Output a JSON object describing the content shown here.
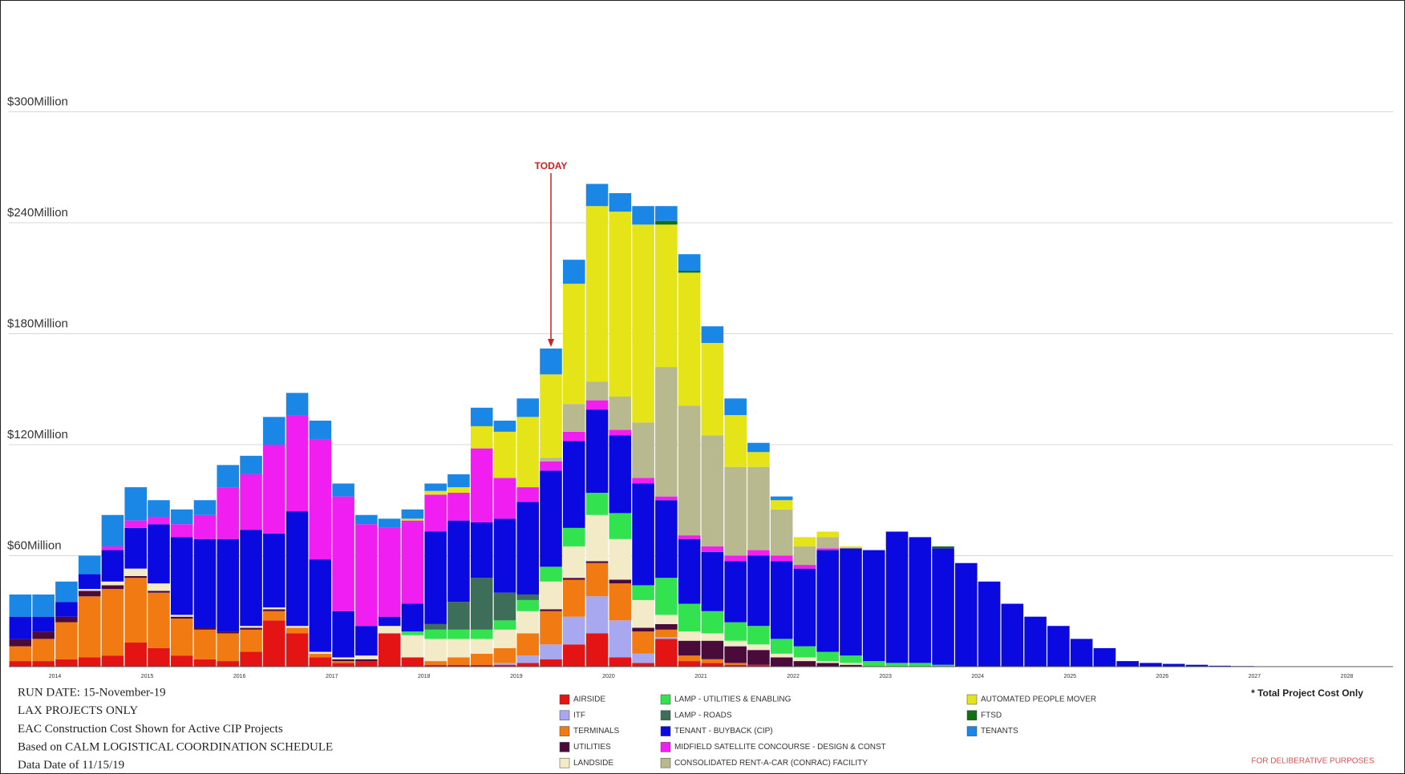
{
  "chart_data": {
    "type": "stacked_bar",
    "categories": [
      null,
      "2014",
      null,
      null,
      null,
      "2015",
      null,
      null,
      null,
      "2016",
      null,
      null,
      null,
      "2017",
      null,
      null,
      null,
      "2018",
      null,
      null,
      null,
      "2019",
      null,
      null,
      null,
      "2020",
      null,
      null,
      null,
      "2021",
      null,
      null,
      null,
      "2022",
      null,
      null,
      null,
      "2023",
      null,
      null,
      null,
      "2024",
      null,
      null,
      null,
      "2025",
      null,
      null,
      null,
      "2026",
      null,
      null,
      null,
      "2027",
      null,
      null,
      null,
      "2028",
      null,
      null
    ],
    "ylim": [
      0,
      360
    ],
    "yticks": [
      {
        "value": 60,
        "label": "$60Million"
      },
      {
        "value": 120,
        "label": "$120Million"
      },
      {
        "value": 180,
        "label": "$180Million"
      },
      {
        "value": 240,
        "label": "$240Million"
      },
      {
        "value": 300,
        "label": "$300Million"
      }
    ],
    "grid": true,
    "annotation": "TODAY",
    "notes": [
      "RUN DATE: 15-November-19",
      "LAX PROJECTS ONLY",
      "EAC Construction Cost Shown for Active CIP Projects",
      "Based on CALM LOGISTICAL COORDINATION SCHEDULE",
      "Data Date of 11/15/19"
    ],
    "footnote": "* Total Project Cost Only",
    "disclaimer": "FOR DELIBERATIVE PURPOSES",
    "series": [
      {
        "name": "AIRSIDE",
        "color": "#e41414",
        "values": [
          3,
          3,
          4,
          5,
          6,
          13,
          10,
          6,
          4,
          3,
          8,
          25,
          18,
          5,
          2,
          3,
          18,
          5,
          1,
          1,
          1,
          1,
          2,
          4,
          12,
          18,
          5,
          2,
          15,
          3,
          2,
          1,
          1,
          0,
          0,
          0,
          0,
          0,
          0,
          0,
          0,
          0,
          0,
          0,
          0,
          0,
          0,
          0,
          0,
          0,
          0,
          0,
          0,
          0,
          0,
          0,
          0,
          0,
          0,
          0
        ]
      },
      {
        "name": "ITF",
        "color": "#a8a8f0",
        "values": [
          0,
          0,
          0,
          0,
          0,
          0,
          0,
          0,
          0,
          0,
          0,
          0,
          0,
          0,
          0,
          0,
          0,
          0,
          0,
          0,
          0,
          1,
          4,
          8,
          15,
          20,
          20,
          5,
          1,
          0,
          0,
          0,
          0,
          0,
          0,
          0,
          0,
          0,
          0,
          0,
          0,
          0,
          0,
          0,
          0,
          0,
          0,
          0,
          0,
          0,
          0,
          0,
          0,
          0,
          0,
          0,
          0,
          0,
          0,
          0
        ]
      },
      {
        "name": "TERMINALS",
        "color": "#f27a12",
        "values": [
          8,
          12,
          20,
          33,
          36,
          35,
          30,
          20,
          16,
          15,
          12,
          5,
          3,
          2,
          1,
          0,
          0,
          0,
          2,
          4,
          6,
          8,
          12,
          18,
          20,
          18,
          20,
          12,
          4,
          3,
          2,
          1,
          0,
          0,
          0,
          0,
          0,
          0,
          0,
          0,
          0,
          0,
          0,
          0,
          0,
          0,
          0,
          0,
          0,
          0,
          0,
          0,
          0,
          0,
          0,
          0,
          0,
          0,
          0,
          0
        ]
      },
      {
        "name": "UTILITIES",
        "color": "#4a0a3a",
        "values": [
          4,
          4,
          3,
          3,
          2,
          1,
          1,
          1,
          1,
          1,
          1,
          1,
          0,
          0,
          1,
          1,
          0,
          0,
          0,
          0,
          0,
          0,
          0,
          1,
          1,
          1,
          2,
          2,
          3,
          8,
          10,
          9,
          8,
          5,
          3,
          2,
          1,
          0,
          0,
          0,
          0,
          0,
          0,
          0,
          0,
          0,
          0,
          0,
          0,
          0,
          0,
          0,
          0,
          0,
          0,
          0,
          0,
          0,
          0,
          0
        ]
      },
      {
        "name": "LANDSIDE",
        "color": "#f3ebc8",
        "values": [
          0,
          0,
          0,
          1,
          2,
          4,
          4,
          1,
          0,
          0,
          1,
          1,
          1,
          1,
          1,
          2,
          4,
          12,
          12,
          10,
          8,
          10,
          12,
          15,
          17,
          25,
          22,
          15,
          5,
          5,
          4,
          3,
          3,
          2,
          2,
          1,
          1,
          0,
          0,
          0,
          0,
          0,
          0,
          0,
          0,
          0,
          0,
          0,
          0,
          0,
          0,
          0,
          0,
          0,
          0,
          0,
          0,
          0,
          0,
          0
        ]
      },
      {
        "name": "LAMP - UTILITIES & ENABLING",
        "color": "#33e24f",
        "values": [
          0,
          0,
          0,
          0,
          0,
          0,
          0,
          0,
          0,
          0,
          0,
          0,
          0,
          0,
          0,
          0,
          0,
          2,
          5,
          5,
          5,
          5,
          6,
          8,
          10,
          12,
          14,
          8,
          20,
          15,
          12,
          10,
          10,
          8,
          6,
          5,
          4,
          3,
          2,
          2,
          1,
          0,
          0,
          0,
          0,
          0,
          0,
          0,
          0,
          0,
          0,
          0,
          0,
          0,
          0,
          0,
          0,
          0,
          0,
          0
        ]
      },
      {
        "name": "LAMP - ROADS",
        "color": "#3c6e5a",
        "values": [
          0,
          0,
          0,
          0,
          0,
          0,
          0,
          0,
          0,
          0,
          0,
          0,
          0,
          0,
          0,
          0,
          0,
          0,
          3,
          15,
          28,
          15,
          3,
          0,
          0,
          0,
          0,
          0,
          0,
          0,
          0,
          0,
          0,
          0,
          0,
          0,
          0,
          0,
          0,
          0,
          0,
          0,
          0,
          0,
          0,
          0,
          0,
          0,
          0,
          0,
          0,
          0,
          0,
          0,
          0,
          0,
          0,
          0,
          0,
          0
        ]
      },
      {
        "name": "TENANT - BUYBACK (CIP)",
        "color": "#0a0ae0",
        "values": [
          12,
          8,
          8,
          8,
          17,
          22,
          32,
          42,
          48,
          50,
          52,
          40,
          62,
          50,
          25,
          16,
          5,
          15,
          50,
          44,
          30,
          40,
          50,
          52,
          47,
          45,
          42,
          55,
          42,
          35,
          32,
          33,
          38,
          42,
          42,
          55,
          58,
          60,
          71,
          68,
          63,
          56,
          46,
          34,
          27,
          22,
          15,
          10,
          3,
          2,
          1.5,
          1,
          0.5,
          0.3,
          0,
          0,
          0,
          0,
          0,
          0
        ]
      },
      {
        "name": "MIDFIELD SATELLITE CONCOURSE - DESIGN & CONST",
        "color": "#f01ef0",
        "values": [
          0,
          0,
          0,
          0,
          2,
          4,
          4,
          7,
          13,
          28,
          30,
          48,
          52,
          65,
          62,
          55,
          48,
          45,
          20,
          15,
          40,
          22,
          8,
          5,
          5,
          5,
          3,
          3,
          2,
          2,
          3,
          3,
          3,
          3,
          2,
          1,
          0,
          0,
          0,
          0,
          0,
          0,
          0,
          0,
          0,
          0,
          0,
          0,
          0,
          0,
          0,
          0,
          0,
          0,
          0,
          0,
          0,
          0,
          0,
          0
        ]
      },
      {
        "name": "CONSOLIDATED RENT-A-CAR (CONRAC) FACILITY",
        "color": "#b9b98f",
        "values": [
          0,
          0,
          0,
          0,
          0,
          0,
          0,
          0,
          0,
          0,
          0,
          0,
          0,
          0,
          0,
          0,
          0,
          0,
          0,
          0,
          0,
          0,
          0,
          2,
          15,
          10,
          18,
          30,
          70,
          70,
          60,
          48,
          45,
          25,
          10,
          6,
          0,
          0,
          0,
          0,
          0,
          0,
          0,
          0,
          0,
          0,
          0,
          0,
          0,
          0,
          0,
          0,
          0,
          0,
          0,
          0,
          0,
          0,
          0,
          0
        ]
      },
      {
        "name": "AUTOMATED PEOPLE MOVER",
        "color": "#e4e419",
        "values": [
          0,
          0,
          0,
          0,
          0,
          0,
          0,
          0,
          0,
          0,
          0,
          0,
          0,
          0,
          0,
          0,
          0,
          1,
          2,
          3,
          12,
          25,
          38,
          45,
          65,
          95,
          100,
          107,
          77,
          72,
          50,
          28,
          8,
          5,
          5,
          3,
          1,
          0,
          0,
          0,
          0,
          0,
          0,
          0,
          0,
          0,
          0,
          0,
          0,
          0,
          0,
          0,
          0,
          0,
          0,
          0,
          0,
          0,
          0,
          0
        ]
      },
      {
        "name": "FTSD",
        "color": "#127012",
        "values": [
          0,
          0,
          0,
          0,
          0,
          0,
          0,
          0,
          0,
          0,
          0,
          0,
          0,
          0,
          0,
          0,
          0,
          0,
          0,
          0,
          0,
          0,
          0,
          0,
          0,
          0,
          0,
          0,
          2,
          1,
          0,
          0,
          0,
          0,
          0,
          0,
          0,
          0,
          0,
          0,
          1,
          0,
          0,
          0,
          0,
          0,
          0,
          0,
          0,
          0,
          0,
          0,
          0,
          0,
          0,
          0,
          0,
          0,
          0,
          0
        ]
      },
      {
        "name": "TENANTS",
        "color": "#1a86e6",
        "values": [
          12,
          12,
          11,
          10,
          17,
          18,
          9,
          8,
          8,
          12,
          10,
          15,
          12,
          10,
          7,
          5,
          5,
          5,
          4,
          7,
          10,
          6,
          10,
          14,
          13,
          12,
          10,
          10,
          8,
          9,
          9,
          9,
          5,
          2,
          0,
          0,
          0,
          0,
          0,
          0,
          0,
          0,
          0,
          0,
          0,
          0,
          0,
          0,
          0,
          0,
          0,
          0,
          0,
          0,
          0,
          0,
          0,
          0,
          0,
          0
        ]
      }
    ]
  }
}
